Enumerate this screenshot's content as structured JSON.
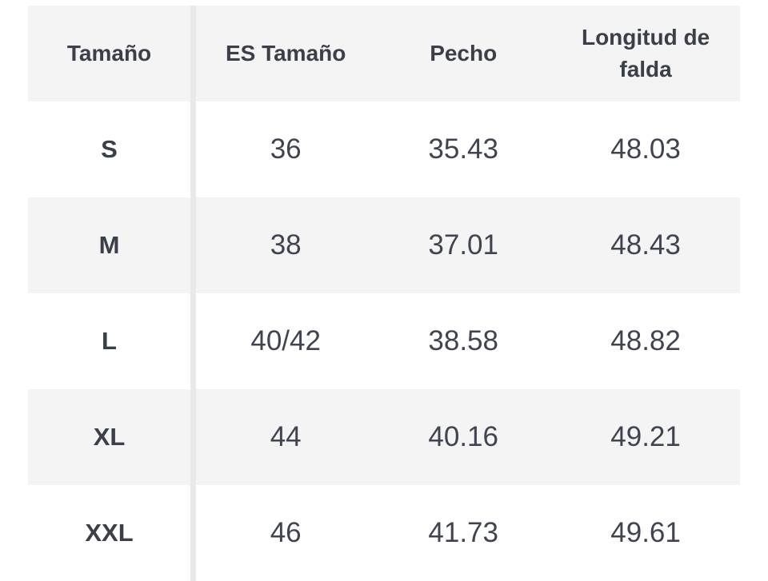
{
  "colors": {
    "page_bg": "#ffffff",
    "header_bg": "#f4f4f4",
    "zebra_row_bg": "#f4f4f4",
    "row_bg": "#ffffff",
    "divider": "#e9e9ea",
    "text": "#3a3f4a"
  },
  "chart_data": {
    "type": "table",
    "title": "",
    "columns": [
      "Tamaño",
      "ES Tamaño",
      "Pecho",
      "Longitud de falda"
    ],
    "rows": [
      [
        "S",
        "36",
        "35.43",
        "48.03"
      ],
      [
        "M",
        "38",
        "37.01",
        "48.43"
      ],
      [
        "L",
        "40/42",
        "38.58",
        "48.82"
      ],
      [
        "XL",
        "44",
        "40.16",
        "49.21"
      ],
      [
        "XXL",
        "46",
        "41.73",
        "49.61"
      ]
    ]
  }
}
